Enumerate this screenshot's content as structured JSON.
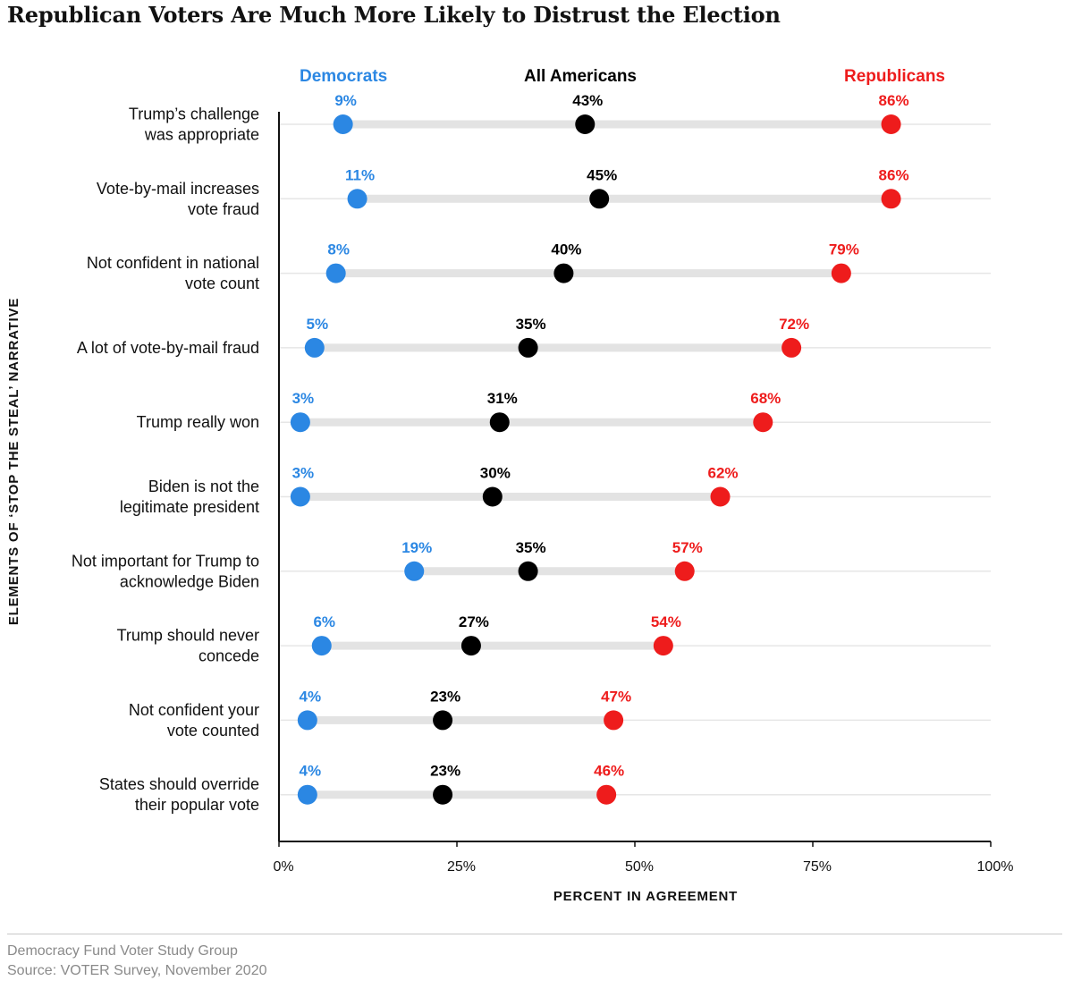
{
  "chart_data": {
    "type": "dot",
    "title": "Republican Voters Are Much More Likely to Distrust the Election",
    "xlabel": "PERCENT IN AGREEMENT",
    "ylabel": "ELEMENTS OF ‘STOP THE STEAL’ NARRATIVE",
    "xlim": [
      0,
      100
    ],
    "x_ticks": [
      0,
      25,
      50,
      75,
      100
    ],
    "x_tick_labels": [
      "0%",
      "25%",
      "50%",
      "75%",
      "100%"
    ],
    "grid": true,
    "categories": [
      "Trump’s challenge|was appropriate",
      "Vote-by-mail increases|vote fraud",
      "Not confident in national|vote count",
      "A lot of vote-by-mail fraud",
      "Trump really won",
      "Biden is not the|legitimate president",
      "Not important for Trump to|acknowledge Biden",
      "Trump should never|concede",
      "Not confident your|vote counted",
      "States should override|their popular vote"
    ],
    "series": [
      {
        "name": "Democrats",
        "color": "#2b87e3",
        "values": [
          9,
          11,
          8,
          5,
          3,
          3,
          19,
          6,
          4,
          4
        ]
      },
      {
        "name": "All Americans",
        "color": "#000000",
        "values": [
          43,
          45,
          40,
          35,
          31,
          30,
          35,
          27,
          23,
          23
        ]
      },
      {
        "name": "Republicans",
        "color": "#ee1c1c",
        "values": [
          86,
          86,
          79,
          72,
          68,
          62,
          57,
          54,
          47,
          46
        ]
      }
    ]
  },
  "footer": {
    "organization": "Democracy Fund Voter Study Group",
    "source": "Source: VOTER Survey, November 2020"
  },
  "colors": {
    "range_bar": "#e3e3e3",
    "gridline": "#e6e6e6",
    "axis": "#111111"
  }
}
